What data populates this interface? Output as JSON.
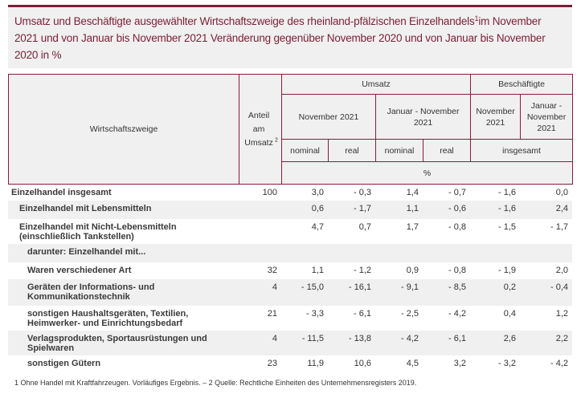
{
  "title": {
    "text": "Umsatz und Beschäftigte ausgewählter Wirtschaftszweige des rheinland-pfälzischen Einzelhandels",
    "sup": "1",
    "text2": "im November 2021 und von Januar bis November 2021 Veränderung gegenüber November 2020 und von Januar bis November 2020 in %"
  },
  "header": {
    "wz": "Wirtschaftszweige",
    "anteil": "Anteil am Umsatz",
    "anteil_sup": "2",
    "umsatz": "Umsatz",
    "besch": "Beschäftigte",
    "nov": "November 2021",
    "jan_nov": "Januar - November 2021",
    "b_nov": "November 2021",
    "b_jan": "Januar - November 2021",
    "nominal1": "nominal",
    "real1": "real",
    "nominal2": "nominal",
    "real2": "real",
    "insgesamt": "insgesamt",
    "unit": "%"
  },
  "rows": [
    {
      "label": "Einzelhandel insgesamt",
      "indent": 0,
      "v": [
        "100",
        "3,0",
        "- 0,3",
        "1,4",
        "- 0,7",
        "- 1,6",
        "0,0"
      ]
    },
    {
      "label": "Einzelhandel mit Lebensmitteln",
      "indent": 1,
      "v": [
        "",
        "0,6",
        "- 1,7",
        "1,1",
        "- 0,6",
        "- 1,6",
        "2,4"
      ]
    },
    {
      "label": "Einzelhandel mit Nicht-Lebensmitteln\n(einschließlich Tankstellen)",
      "indent": 1,
      "v": [
        "",
        "4,7",
        "0,7",
        "1,7",
        "- 0,8",
        "- 1,5",
        "- 1,7"
      ]
    },
    {
      "label": "darunter: Einzelhandel mit...",
      "indent": 2,
      "v": [
        "",
        "",
        "",
        "",
        "",
        "",
        ""
      ]
    },
    {
      "label": "Waren verschiedener Art",
      "indent": 2,
      "v": [
        "32",
        "1,1",
        "- 1,2",
        "0,9",
        "- 0,8",
        "- 1,9",
        "2,0"
      ]
    },
    {
      "label": "Geräten der Informations- und\nKommunikationstechnik",
      "indent": 2,
      "v": [
        "4",
        "- 15,0",
        "- 16,1",
        "- 9,1",
        "- 8,5",
        "0,2",
        "- 0,4"
      ]
    },
    {
      "label": "sonstigen Haushaltsgeräten, Textilien,\nHeimwerker- und Einrichtungsbedarf",
      "indent": 2,
      "v": [
        "21",
        "- 3,3",
        "- 6,1",
        "- 2,5",
        "- 4,2",
        "0,4",
        "1,2"
      ]
    },
    {
      "label": "Verlagsprodukten, Sportausrüstungen und\nSpielwaren",
      "indent": 2,
      "v": [
        "4",
        "- 11,5",
        "- 13,8",
        "- 4,2",
        "- 6,1",
        "2,6",
        "2,2"
      ]
    },
    {
      "label": "sonstigen Gütern",
      "indent": 2,
      "v": [
        "23",
        "11,9",
        "10,6",
        "4,5",
        "3,2",
        "- 3,2",
        "- 4,2"
      ]
    }
  ],
  "footnote": "1 Ohne Handel mit Kraftfahrzeugen. Vorläufiges Ergebnis. – 2 Quelle: Rechtliche Einheiten des Unternehmensregisters 2019."
}
